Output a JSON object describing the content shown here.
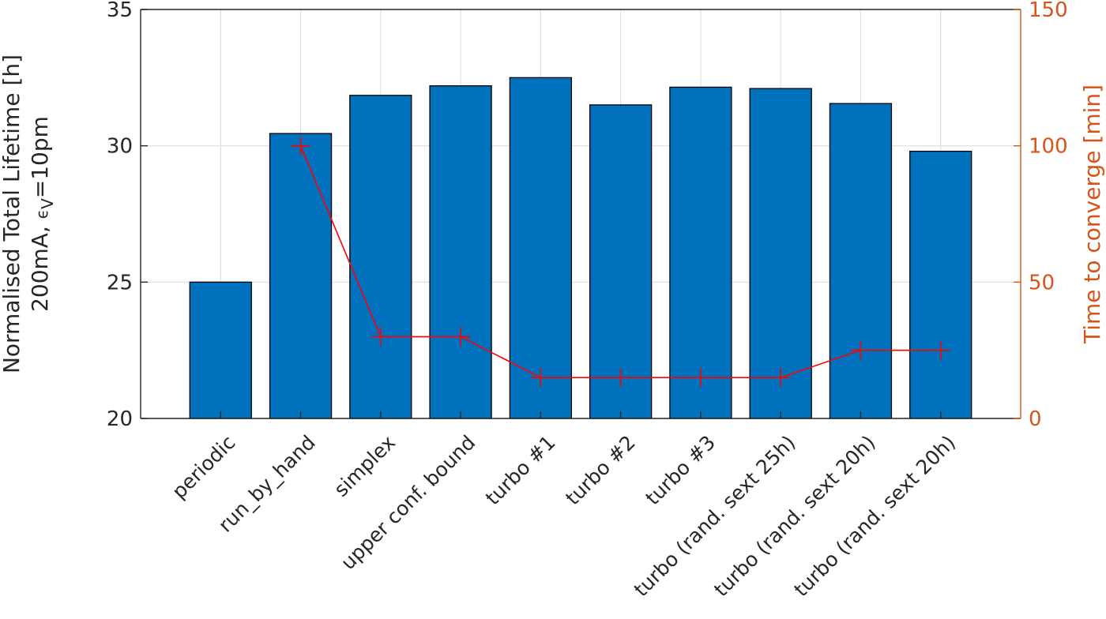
{
  "chart_data": {
    "type": "bar",
    "categories": [
      "periodic",
      "run_by_hand",
      "simplex",
      "upper conf. bound",
      "turbo #1",
      "turbo #2",
      "turbo #3",
      "turbo (rand. sext 25h)",
      "turbo (rand. sext 20h)",
      "turbo (rand. sext 20h)"
    ],
    "series": [
      {
        "values": [
          25.0,
          30.45,
          31.85,
          32.2,
          32.5,
          31.5,
          32.15,
          32.1,
          31.55,
          29.8
        ],
        "color": "#0072bd"
      },
      {
        "values": [
          null,
          100,
          30,
          30,
          15,
          15,
          15,
          15,
          25,
          25
        ],
        "color": "#ff0000",
        "axis": "right",
        "type": "line",
        "marker": "+"
      }
    ],
    "ylabel_line1": "Normalised Total Lifetime [h]",
    "ylabel_line2_prefix": "200mA, ",
    "ylabel_line2_symbol": "ϵ",
    "ylabel_line2_subscript": "V",
    "ylabel_line2_suffix": "=10pm",
    "ylabel_right": "Time to converge [min]",
    "ylim": [
      20,
      35
    ],
    "yticks": [
      "20",
      "25",
      "30",
      "35"
    ],
    "ylim_right": [
      0,
      150
    ],
    "yticks_right": [
      "0",
      "50",
      "100",
      "150"
    ],
    "grid": true,
    "right_axis_color": "#d95319"
  }
}
